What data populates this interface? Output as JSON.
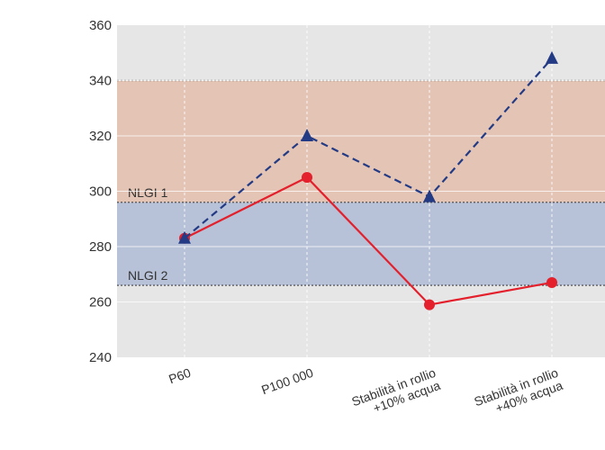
{
  "chart_data": {
    "type": "line",
    "categories": [
      "P60",
      "P100 000",
      "Stabilità in rollio\n+10% acqua",
      "Stabilità in rollio\n+40% acqua"
    ],
    "series": [
      {
        "name": "",
        "values": [
          283,
          305,
          259,
          267
        ],
        "color": "#e3202c",
        "marker": "circle",
        "line_style": "solid"
      },
      {
        "name": "",
        "values": [
          283,
          320,
          298,
          348
        ],
        "color": "#233a85",
        "marker": "triangle",
        "line_style": "dashed"
      }
    ],
    "ylim": [
      240,
      360
    ],
    "yticks": [
      240,
      260,
      280,
      300,
      320,
      340,
      360
    ],
    "bands": [
      {
        "label": "NLGI 1",
        "from": 296,
        "to": 340,
        "color": "#e4c4b4"
      },
      {
        "label": "NLGI 2",
        "from": 266,
        "to": 296,
        "color": "#b7c1d7"
      }
    ],
    "plot_background": "#e6e6e6",
    "grid": true,
    "title": "",
    "xlabel": "",
    "ylabel": ""
  }
}
